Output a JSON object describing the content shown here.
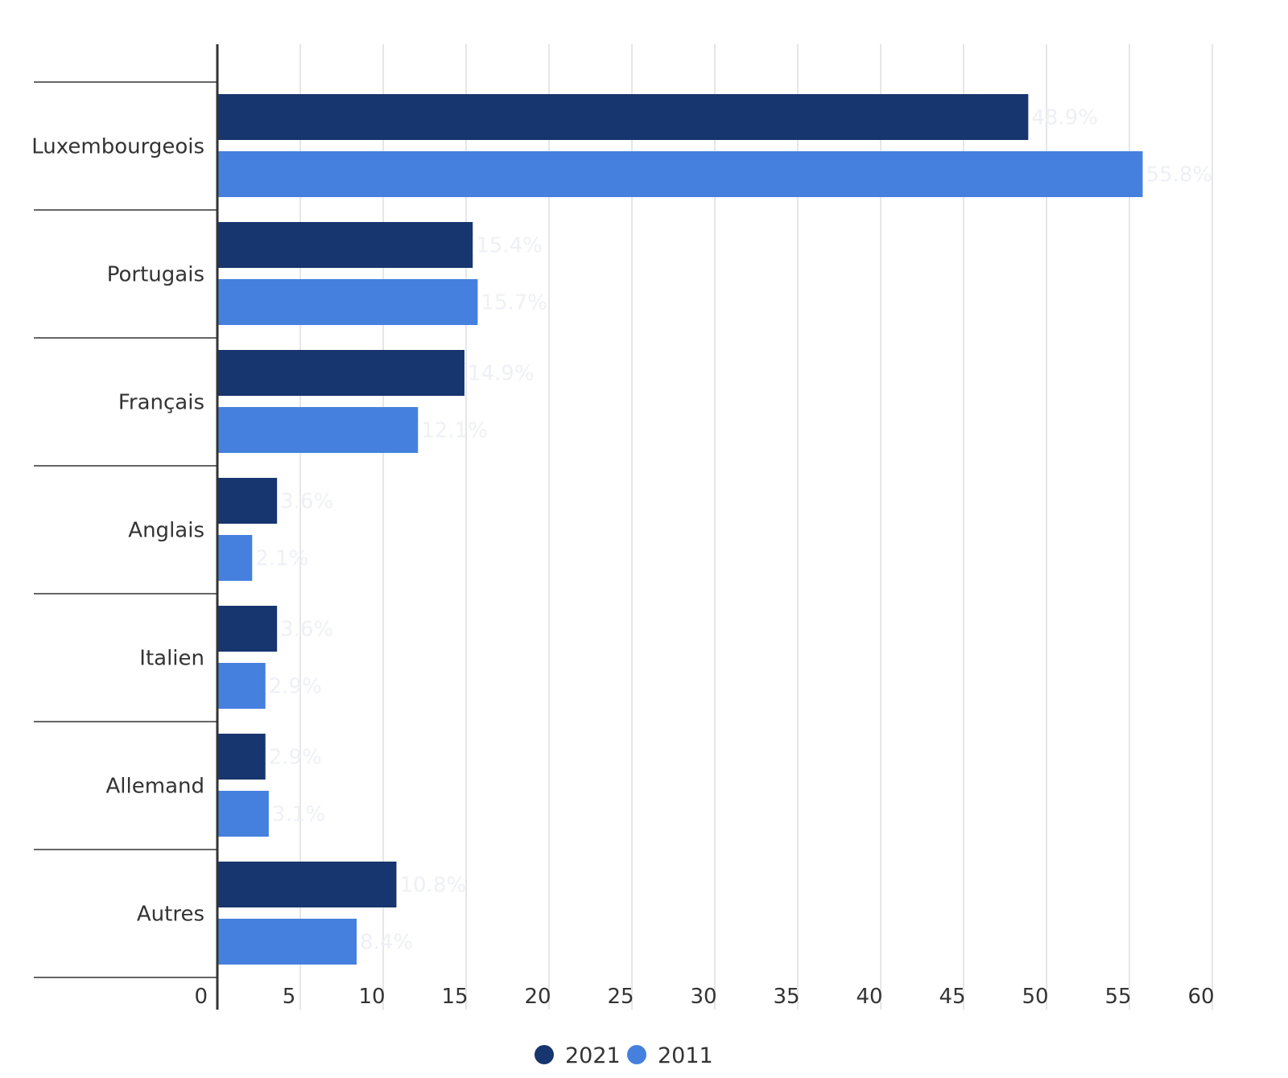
{
  "chart_data": {
    "type": "bar",
    "orientation": "horizontal",
    "categories": [
      "Luxembourgeois",
      "Portugais",
      "Français",
      "Anglais",
      "Italien",
      "Allemand",
      "Autres"
    ],
    "series": [
      {
        "name": "2021",
        "color": "#17356e",
        "values": [
          48.9,
          15.4,
          14.9,
          3.6,
          3.6,
          2.9,
          10.8
        ],
        "labels": [
          "48.9%",
          "15.4%",
          "14.9%",
          "3.6%",
          "3.6%",
          "2.9%",
          "10.8%"
        ]
      },
      {
        "name": "2011",
        "color": "#4580de",
        "values": [
          55.8,
          15.7,
          12.1,
          2.1,
          2.9,
          3.1,
          8.4
        ],
        "labels": [
          "55.8%",
          "15.7%",
          "12.1%",
          "2.1%",
          "2.9%",
          "3.1%",
          "8.4%"
        ]
      }
    ],
    "xlim": [
      0,
      60
    ],
    "xticks": [
      "0",
      "5",
      "10",
      "15",
      "20",
      "25",
      "30",
      "35",
      "40",
      "45",
      "50",
      "55",
      "60"
    ],
    "grid": true,
    "legend_position": "bottom-center",
    "title": "",
    "xlabel": "",
    "ylabel": ""
  }
}
